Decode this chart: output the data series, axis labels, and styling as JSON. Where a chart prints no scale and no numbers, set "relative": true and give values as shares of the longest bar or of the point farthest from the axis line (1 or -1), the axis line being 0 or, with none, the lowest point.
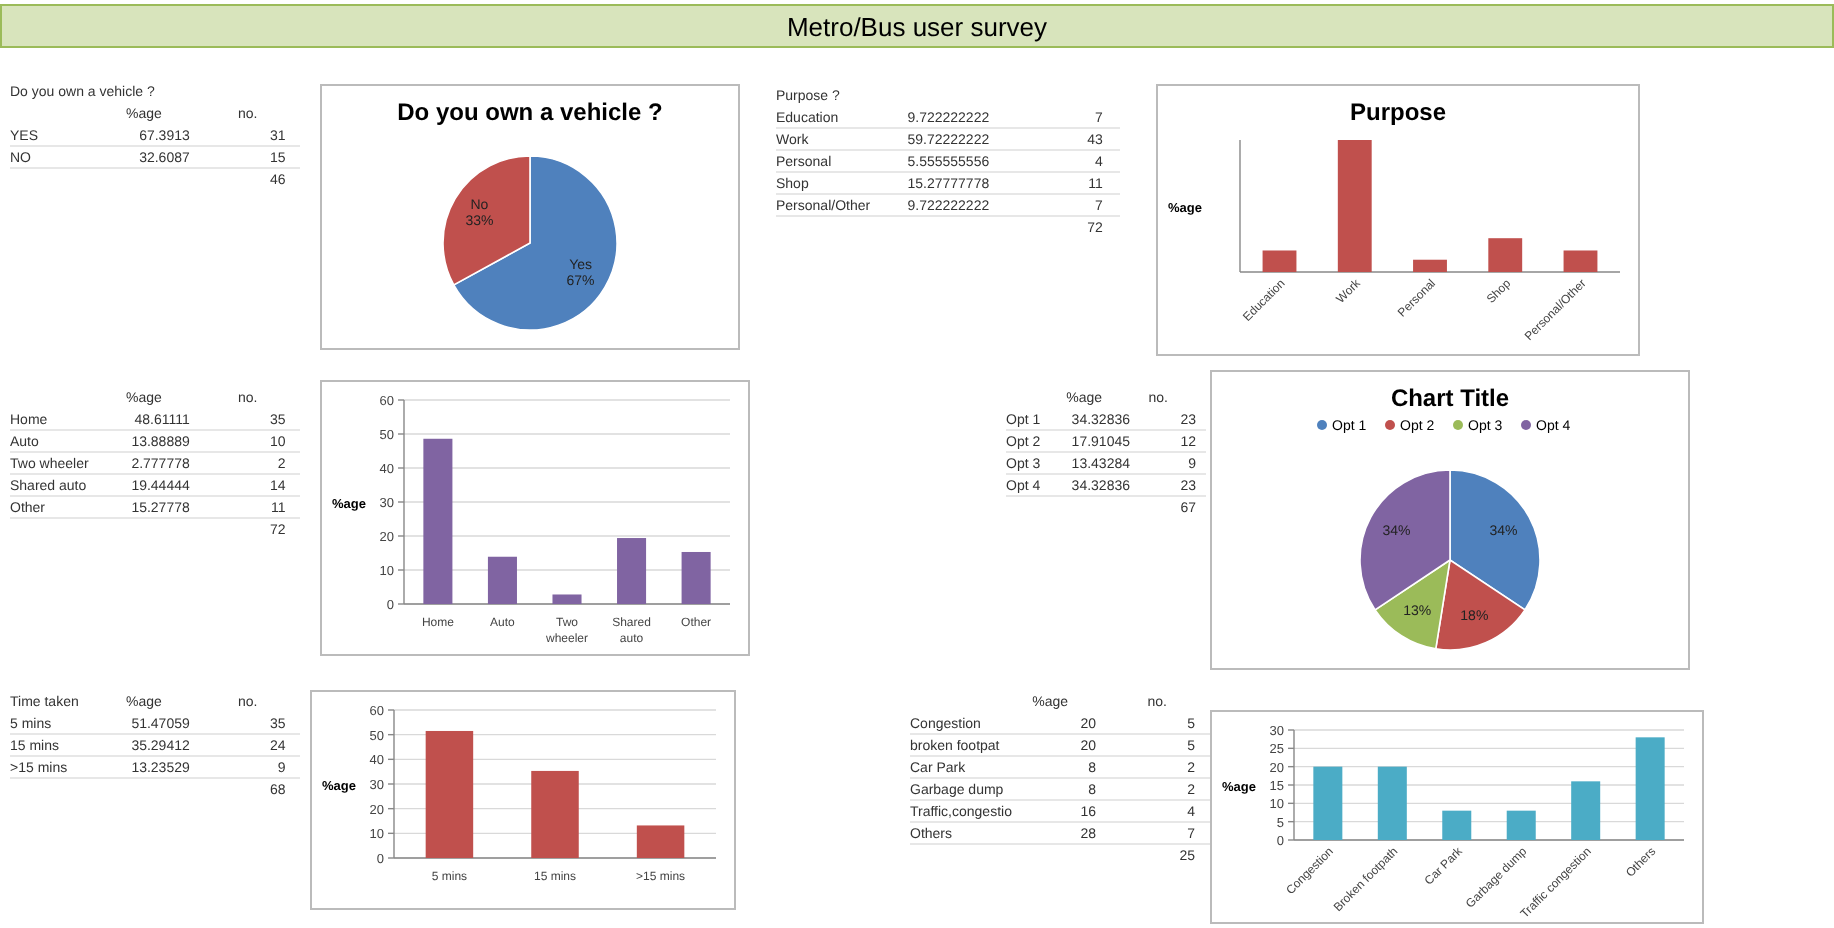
{
  "chart_data": [
    {
      "type": "other",
      "title": "Metro/Bus user survey"
    },
    {
      "type": "other",
      "data_labels": true,
      "title": "Do you own a vehicle ?",
      "categories": [
        "YES",
        "NO"
      ],
      "series": [
        {
          "name": "%age",
          "values": [
            67.3913,
            32.6087
          ]
        },
        {
          "name": "no.",
          "values": [
            31,
            15
          ]
        }
      ],
      "annotations": [
        "46"
      ]
    },
    {
      "type": "pie",
      "title": "Do you own a vehicle ?",
      "categories": [
        "Yes",
        "No"
      ],
      "values": [
        67,
        33
      ],
      "value_labels": [
        "67%",
        "33%"
      ],
      "colors": [
        "#4f81bd",
        "#c0504d"
      ]
    },
    {
      "type": "other",
      "data_labels": true,
      "title": "Purpose ?",
      "categories": [
        "Education",
        "Work",
        "Personal",
        "Shop",
        "Personal/Other"
      ],
      "series": [
        {
          "values": [
            9.722222222,
            59.72222222,
            5.555555556,
            15.27777778,
            9.722222222
          ]
        },
        {
          "values": [
            7,
            43,
            4,
            11,
            7
          ]
        }
      ],
      "annotations": [
        "72"
      ]
    },
    {
      "type": "bar",
      "title": "Purpose",
      "ylabel": "%age",
      "relative": true,
      "categories": [
        "Education",
        "Work",
        "Personal",
        "Shop",
        "Personal/Other"
      ],
      "values": [
        0.163,
        1,
        0.093,
        0.256,
        0.163
      ],
      "color": "#c0504d"
    },
    {
      "type": "other",
      "data_labels": true,
      "categories": [
        "Home",
        "Auto",
        "Two wheeler",
        "Shared auto",
        "Other"
      ],
      "series": [
        {
          "name": "%age",
          "values": [
            48.61111,
            13.88889,
            2.777778,
            19.44444,
            15.27778
          ]
        },
        {
          "name": "no.",
          "values": [
            35,
            10,
            2,
            14,
            11
          ]
        }
      ],
      "annotations": [
        "72"
      ]
    },
    {
      "type": "bar",
      "ylabel": "%age",
      "categories": [
        "Home",
        "Auto",
        "Two wheeler",
        "Shared auto",
        "Other"
      ],
      "values": [
        48.6,
        13.9,
        2.8,
        19.4,
        15.3
      ],
      "color": "#8064a2",
      "ylim": [
        0,
        60
      ],
      "yticks": [
        0,
        10,
        20,
        30,
        40,
        50,
        60
      ],
      "grid": "y"
    },
    {
      "type": "other",
      "data_labels": true,
      "categories": [
        "Opt 1",
        "Opt 2",
        "Opt 3",
        "Opt 4"
      ],
      "series": [
        {
          "name": "%age",
          "values": [
            34.32836,
            17.91045,
            13.43284,
            34.32836
          ]
        },
        {
          "name": "no.",
          "values": [
            23,
            12,
            9,
            23
          ]
        }
      ],
      "annotations": [
        "67"
      ]
    },
    {
      "type": "pie",
      "title": "Chart Title",
      "categories": [
        "Opt 1",
        "Opt 2",
        "Opt 3",
        "Opt 4"
      ],
      "values": [
        34,
        18,
        13,
        34
      ],
      "value_labels": [
        "34%",
        "18%",
        "13%",
        "34%"
      ],
      "colors": [
        "#4f81bd",
        "#c0504d",
        "#9bbb59",
        "#8064a2"
      ],
      "legend": "top"
    },
    {
      "type": "other",
      "data_labels": true,
      "title": "Time taken",
      "categories": [
        "5 mins",
        "15 mins",
        ">15 mins"
      ],
      "series": [
        {
          "name": "%age",
          "values": [
            51.47059,
            35.29412,
            13.23529
          ]
        },
        {
          "name": "no.",
          "values": [
            35,
            24,
            9
          ]
        }
      ],
      "annotations": [
        "68"
      ]
    },
    {
      "type": "bar",
      "ylabel": "%age",
      "categories": [
        "5 mins",
        "15 mins",
        ">15 mins"
      ],
      "values": [
        51.5,
        35.3,
        13.2
      ],
      "color": "#c0504d",
      "ylim": [
        0,
        60
      ],
      "yticks": [
        0,
        10,
        20,
        30,
        40,
        50,
        60
      ],
      "grid": "y"
    },
    {
      "type": "other",
      "data_labels": true,
      "categories": [
        "Congestion",
        "broken footpat",
        "Car Park",
        "Garbage dump",
        "Traffic,congestio",
        "Others"
      ],
      "series": [
        {
          "name": "%age",
          "values": [
            20,
            20,
            8,
            8,
            16,
            28
          ]
        },
        {
          "name": "no.",
          "values": [
            5,
            5,
            2,
            2,
            4,
            7
          ]
        }
      ],
      "annotations": [
        "25"
      ]
    },
    {
      "type": "bar",
      "ylabel": "%age",
      "categories": [
        "Congestion",
        "Broken footpath",
        "Car Park",
        "Garbage dump",
        "Traffic congestion",
        "Others"
      ],
      "values": [
        20,
        20,
        8,
        8,
        16,
        28
      ],
      "color": "#4bacc6",
      "ylim": [
        0,
        30
      ],
      "yticks": [
        0,
        5,
        10,
        15,
        20,
        25,
        30
      ],
      "grid": "y"
    }
  ]
}
